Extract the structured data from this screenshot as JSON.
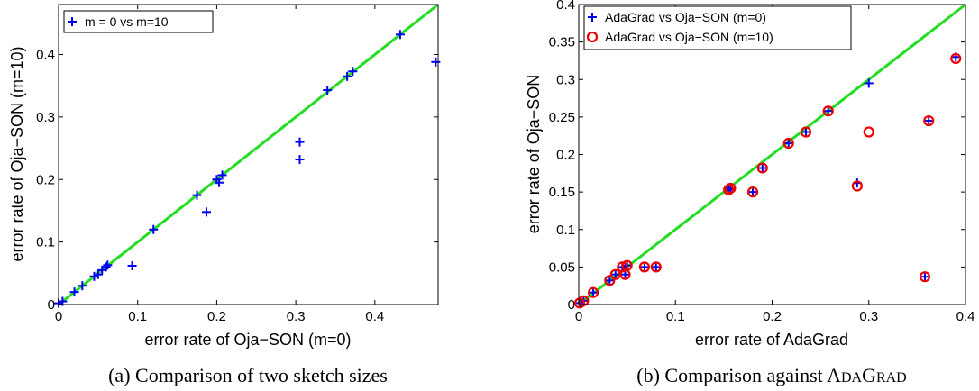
{
  "chart_data": [
    {
      "type": "scatter",
      "xlabel": "error rate of Oja−SON (m=0)",
      "ylabel": "error rate of Oja−SON (m=10)",
      "xlim": [
        0,
        0.48
      ],
      "ylim": [
        0,
        0.48
      ],
      "xticks": [
        "0",
        "0.1",
        "0.2",
        "0.3",
        "0.4"
      ],
      "xtick_values": [
        0,
        0.1,
        0.2,
        0.3,
        0.4
      ],
      "yticks": [
        "0",
        "0.1",
        "0.2",
        "0.3",
        "0.4"
      ],
      "ytick_values": [
        0,
        0.1,
        0.2,
        0.3,
        0.4
      ],
      "caption": "(a) Comparison of two sketch sizes",
      "legend_position": "top-left",
      "diagonal_color": "#22dd22",
      "series": [
        {
          "name": "m = 0 vs m=10",
          "marker": "plus",
          "color": "#0000ee",
          "points": [
            [
              0,
              0.002
            ],
            [
              0.005,
              0.005
            ],
            [
              0.02,
              0.02
            ],
            [
              0.03,
              0.03
            ],
            [
              0.045,
              0.045
            ],
            [
              0.05,
              0.048
            ],
            [
              0.055,
              0.055
            ],
            [
              0.06,
              0.06
            ],
            [
              0.062,
              0.063
            ],
            [
              0.093,
              0.062
            ],
            [
              0.12,
              0.12
            ],
            [
              0.175,
              0.175
            ],
            [
              0.187,
              0.148
            ],
            [
              0.2,
              0.2
            ],
            [
              0.203,
              0.195
            ],
            [
              0.207,
              0.207
            ],
            [
              0.305,
              0.26
            ],
            [
              0.305,
              0.232
            ],
            [
              0.34,
              0.343
            ],
            [
              0.365,
              0.365
            ],
            [
              0.372,
              0.373
            ],
            [
              0.432,
              0.432
            ],
            [
              0.477,
              0.388
            ]
          ]
        }
      ]
    },
    {
      "type": "scatter",
      "xlabel": "error rate of AdaGrad",
      "ylabel": "error rate of Oja−SON",
      "xlim": [
        0,
        0.4
      ],
      "ylim": [
        0,
        0.4
      ],
      "xticks": [
        "0",
        "0.1",
        "0.2",
        "0.3",
        "0.4"
      ],
      "xtick_values": [
        0,
        0.1,
        0.2,
        0.3,
        0.4
      ],
      "yticks": [
        "0",
        "0.05",
        "0.1",
        "0.15",
        "0.2",
        "0.25",
        "0.3",
        "0.35",
        "0.4"
      ],
      "ytick_values": [
        0,
        0.05,
        0.1,
        0.15,
        0.2,
        0.25,
        0.3,
        0.35,
        0.4
      ],
      "caption": "(b) Comparison against ADAGRAD",
      "legend_position": "top-left",
      "diagonal_color": "#22dd22",
      "series": [
        {
          "name": "AdaGrad vs Oja−SON (m=0)",
          "marker": "plus",
          "color": "#0000ee",
          "points": [
            [
              0.001,
              0.002
            ],
            [
              0.005,
              0.005
            ],
            [
              0.015,
              0.016
            ],
            [
              0.032,
              0.032
            ],
            [
              0.038,
              0.04
            ],
            [
              0.045,
              0.05
            ],
            [
              0.05,
              0.052
            ],
            [
              0.048,
              0.04
            ],
            [
              0.068,
              0.05
            ],
            [
              0.08,
              0.05
            ],
            [
              0.155,
              0.153
            ],
            [
              0.157,
              0.155
            ],
            [
              0.18,
              0.15
            ],
            [
              0.19,
              0.182
            ],
            [
              0.217,
              0.215
            ],
            [
              0.235,
              0.23
            ],
            [
              0.258,
              0.258
            ],
            [
              0.288,
              0.162
            ],
            [
              0.3,
              0.295
            ],
            [
              0.358,
              0.037
            ],
            [
              0.362,
              0.245
            ],
            [
              0.39,
              0.33
            ]
          ]
        },
        {
          "name": "AdaGrad vs Oja−SON (m=10)",
          "marker": "circle",
          "color": "#ee0000",
          "points": [
            [
              0.001,
              0.002
            ],
            [
              0.005,
              0.005
            ],
            [
              0.015,
              0.016
            ],
            [
              0.032,
              0.032
            ],
            [
              0.038,
              0.04
            ],
            [
              0.045,
              0.05
            ],
            [
              0.05,
              0.052
            ],
            [
              0.048,
              0.04
            ],
            [
              0.068,
              0.05
            ],
            [
              0.08,
              0.05
            ],
            [
              0.155,
              0.153
            ],
            [
              0.157,
              0.155
            ],
            [
              0.18,
              0.15
            ],
            [
              0.19,
              0.182
            ],
            [
              0.217,
              0.215
            ],
            [
              0.235,
              0.23
            ],
            [
              0.258,
              0.258
            ],
            [
              0.288,
              0.158
            ],
            [
              0.3,
              0.23
            ],
            [
              0.358,
              0.037
            ],
            [
              0.362,
              0.245
            ],
            [
              0.39,
              0.328
            ]
          ]
        }
      ]
    }
  ]
}
